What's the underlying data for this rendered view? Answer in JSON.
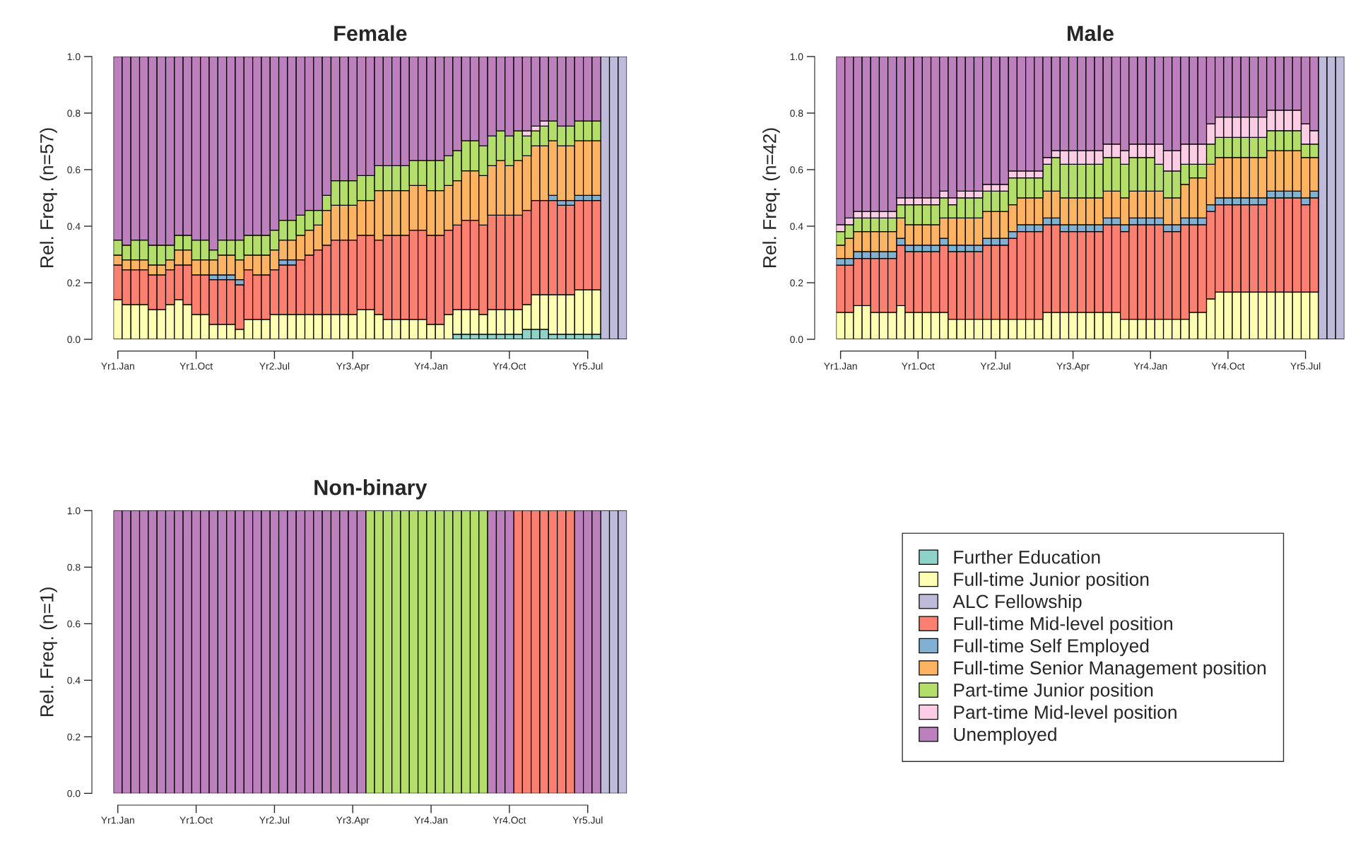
{
  "chart_data": [
    {
      "type": "bar",
      "stacked": true,
      "title": "Female",
      "ylabel": "Rel. Freq. (n=57)",
      "categories": [
        "Yr1.Jan",
        null,
        null,
        null,
        null,
        null,
        null,
        null,
        null,
        "Yr1.Oct",
        null,
        null,
        null,
        null,
        null,
        null,
        null,
        null,
        "Yr2.Jul",
        null,
        null,
        null,
        null,
        null,
        null,
        null,
        null,
        "Yr3.Apr",
        null,
        null,
        null,
        null,
        null,
        null,
        null,
        null,
        "Yr4.Jan",
        null,
        null,
        null,
        null,
        null,
        null,
        null,
        null,
        "Yr4.Oct",
        null,
        null,
        null,
        null,
        null,
        null,
        null,
        null,
        "Yr5.Jul",
        null,
        null,
        null,
        null
      ],
      "ylim": [
        0,
        1
      ],
      "yticks": [
        {
          "value": 0,
          "label": "0.0"
        },
        {
          "value": 0.2,
          "label": "0.2"
        },
        {
          "value": 0.4,
          "label": "0.4"
        },
        {
          "value": 0.6,
          "label": "0.6"
        },
        {
          "value": 0.8,
          "label": "0.8"
        },
        {
          "value": 1,
          "label": "1.0"
        }
      ],
      "series": [
        {
          "color": "#8dd3c7",
          "values": [
            0,
            0,
            0,
            0,
            0,
            0,
            0,
            0,
            0,
            0,
            0,
            0,
            0,
            0,
            0,
            0,
            0,
            0,
            0,
            0,
            0,
            0,
            0,
            0,
            0,
            0,
            0,
            0,
            0,
            0,
            0,
            0,
            0,
            0,
            0,
            0,
            0,
            0,
            0,
            0.018,
            0.018,
            0.018,
            0.018,
            0.018,
            0.018,
            0.018,
            0.018,
            0.035,
            0.035,
            0.035,
            0.018,
            0.018,
            0.018,
            0.018,
            0.018,
            0.018,
            0,
            0,
            0
          ]
        },
        {
          "color": "#ffffb3",
          "values": [
            0.14,
            0.123,
            0.123,
            0.123,
            0.105,
            0.105,
            0.123,
            0.14,
            0.123,
            0.088,
            0.088,
            0.053,
            0.053,
            0.053,
            0.035,
            0.07,
            0.07,
            0.07,
            0.088,
            0.088,
            0.088,
            0.088,
            0.088,
            0.088,
            0.088,
            0.088,
            0.088,
            0.088,
            0.105,
            0.105,
            0.088,
            0.07,
            0.07,
            0.07,
            0.07,
            0.07,
            0.053,
            0.053,
            0.088,
            0.087,
            0.087,
            0.087,
            0.07,
            0.087,
            0.087,
            0.087,
            0.087,
            0.088,
            0.123,
            0.123,
            0.14,
            0.14,
            0.14,
            0.157,
            0.157,
            0.157,
            0,
            0,
            0
          ]
        },
        {
          "color": "#bebada",
          "values": [
            0,
            0,
            0,
            0,
            0,
            0,
            0,
            0,
            0,
            0,
            0,
            0,
            0,
            0,
            0,
            0,
            0,
            0,
            0,
            0,
            0,
            0,
            0,
            0,
            0,
            0,
            0,
            0,
            0,
            0,
            0,
            0,
            0,
            0,
            0,
            0,
            0,
            0,
            0,
            0,
            0,
            0,
            0,
            0,
            0,
            0,
            0,
            0,
            0,
            0,
            0,
            0,
            0,
            0,
            0,
            0,
            1,
            1,
            1
          ]
        },
        {
          "color": "#fb8072",
          "values": [
            0.123,
            0.123,
            0.123,
            0.123,
            0.123,
            0.123,
            0.123,
            0.123,
            0.14,
            0.14,
            0.14,
            0.158,
            0.158,
            0.158,
            0.158,
            0.176,
            0.158,
            0.158,
            0.158,
            0.175,
            0.175,
            0.193,
            0.21,
            0.228,
            0.245,
            0.263,
            0.263,
            0.263,
            0.263,
            0.263,
            0.263,
            0.298,
            0.298,
            0.298,
            0.316,
            0.316,
            0.315,
            0.315,
            0.298,
            0.299,
            0.316,
            0.316,
            0.316,
            0.334,
            0.334,
            0.334,
            0.334,
            0.333,
            0.333,
            0.333,
            0.333,
            0.316,
            0.316,
            0.316,
            0.316,
            0.316,
            0,
            0,
            0
          ]
        },
        {
          "color": "#80b1d3",
          "values": [
            0,
            0,
            0,
            0,
            0,
            0,
            0,
            0,
            0,
            0,
            0,
            0.017,
            0.017,
            0.017,
            0.018,
            0,
            0,
            0,
            0,
            0.018,
            0.018,
            0,
            0,
            0,
            0,
            0,
            0,
            0,
            0,
            0,
            0,
            0,
            0,
            0,
            0,
            0,
            0,
            0,
            0,
            0,
            0,
            0,
            0,
            0,
            0,
            0,
            0,
            0,
            0,
            0,
            0.018,
            0.017,
            0.017,
            0.018,
            0.018,
            0.018,
            0,
            0,
            0
          ]
        },
        {
          "color": "#fdb462",
          "values": [
            0.035,
            0.035,
            0.035,
            0.035,
            0.035,
            0.035,
            0.035,
            0.053,
            0.053,
            0.053,
            0.053,
            0.053,
            0.07,
            0.07,
            0.07,
            0.052,
            0.07,
            0.07,
            0.07,
            0.07,
            0.07,
            0.087,
            0.088,
            0.088,
            0.123,
            0.123,
            0.123,
            0.123,
            0.123,
            0.123,
            0.175,
            0.158,
            0.158,
            0.158,
            0.158,
            0.158,
            0.158,
            0.158,
            0.158,
            0.157,
            0.175,
            0.175,
            0.175,
            0.175,
            0.193,
            0.175,
            0.193,
            0.193,
            0.193,
            0.193,
            0.193,
            0.193,
            0.193,
            0.193,
            0.193,
            0.193,
            0,
            0,
            0
          ]
        },
        {
          "color": "#b3de69",
          "values": [
            0.053,
            0.052,
            0.07,
            0.07,
            0.07,
            0.07,
            0.052,
            0.052,
            0.052,
            0.07,
            0.07,
            0.035,
            0.053,
            0.053,
            0.07,
            0.07,
            0.07,
            0.07,
            0.07,
            0.07,
            0.07,
            0.071,
            0.07,
            0.052,
            0.053,
            0.087,
            0.087,
            0.087,
            0.088,
            0.088,
            0.088,
            0.088,
            0.088,
            0.088,
            0.088,
            0.088,
            0.106,
            0.106,
            0.105,
            0.106,
            0.106,
            0.106,
            0.105,
            0.105,
            0.105,
            0.105,
            0.105,
            0.07,
            0.053,
            0.07,
            0.07,
            0.07,
            0.07,
            0.07,
            0.07,
            0.07,
            0,
            0,
            0
          ]
        },
        {
          "color": "#fccde5",
          "values": [
            0,
            0,
            0,
            0,
            0,
            0,
            0,
            0,
            0,
            0,
            0,
            0,
            0,
            0,
            0,
            0,
            0,
            0,
            0,
            0,
            0,
            0,
            0,
            0,
            0,
            0,
            0,
            0,
            0,
            0,
            0,
            0,
            0,
            0,
            0,
            0,
            0,
            0,
            0,
            0,
            0,
            0,
            0,
            0,
            0,
            0,
            0,
            0.018,
            0.017,
            0.018,
            0,
            0,
            0,
            0,
            0,
            0,
            0,
            0,
            0
          ]
        },
        {
          "color": "#bc80bd",
          "values": [
            0.649,
            0.667,
            0.649,
            0.649,
            0.667,
            0.667,
            0.667,
            0.632,
            0.632,
            0.649,
            0.649,
            0.684,
            0.649,
            0.649,
            0.649,
            0.632,
            0.632,
            0.632,
            0.614,
            0.579,
            0.579,
            0.561,
            0.544,
            0.544,
            0.491,
            0.439,
            0.439,
            0.439,
            0.421,
            0.421,
            0.386,
            0.386,
            0.386,
            0.386,
            0.368,
            0.368,
            0.368,
            0.368,
            0.351,
            0.333,
            0.298,
            0.298,
            0.316,
            0.281,
            0.263,
            0.281,
            0.263,
            0.263,
            0.246,
            0.228,
            0.228,
            0.246,
            0.246,
            0.228,
            0.228,
            0.228,
            0,
            0,
            0
          ]
        }
      ]
    },
    {
      "type": "bar",
      "stacked": true,
      "title": "Male",
      "ylabel": "Rel. Freq. (n=42)",
      "categories": [
        "Yr1.Jan",
        null,
        null,
        null,
        null,
        null,
        null,
        null,
        null,
        "Yr1.Oct",
        null,
        null,
        null,
        null,
        null,
        null,
        null,
        null,
        "Yr2.Jul",
        null,
        null,
        null,
        null,
        null,
        null,
        null,
        null,
        "Yr3.Apr",
        null,
        null,
        null,
        null,
        null,
        null,
        null,
        null,
        "Yr4.Jan",
        null,
        null,
        null,
        null,
        null,
        null,
        null,
        null,
        "Yr4.Oct",
        null,
        null,
        null,
        null,
        null,
        null,
        null,
        null,
        "Yr5.Jul",
        null,
        null,
        null,
        null
      ],
      "ylim": [
        0,
        1
      ],
      "yticks": [
        {
          "value": 0,
          "label": "0.0"
        },
        {
          "value": 0.2,
          "label": "0.2"
        },
        {
          "value": 0.4,
          "label": "0.4"
        },
        {
          "value": 0.6,
          "label": "0.6"
        },
        {
          "value": 0.8,
          "label": "0.8"
        },
        {
          "value": 1,
          "label": "1.0"
        }
      ],
      "series": [
        {
          "color": "#8dd3c7",
          "values": [
            0,
            0,
            0,
            0,
            0,
            0,
            0,
            0,
            0,
            0,
            0,
            0,
            0,
            0,
            0,
            0,
            0,
            0,
            0,
            0,
            0,
            0,
            0,
            0,
            0,
            0,
            0,
            0,
            0,
            0,
            0,
            0,
            0,
            0,
            0,
            0,
            0,
            0,
            0,
            0,
            0,
            0,
            0,
            0,
            0,
            0,
            0,
            0,
            0,
            0,
            0,
            0,
            0,
            0,
            0,
            0,
            0,
            0,
            0
          ]
        },
        {
          "color": "#ffffb3",
          "values": [
            0.095,
            0.095,
            0.119,
            0.119,
            0.095,
            0.095,
            0.095,
            0.119,
            0.095,
            0.095,
            0.095,
            0.095,
            0.095,
            0.071,
            0.071,
            0.071,
            0.071,
            0.071,
            0.071,
            0.071,
            0.071,
            0.071,
            0.071,
            0.071,
            0.095,
            0.095,
            0.095,
            0.095,
            0.095,
            0.095,
            0.095,
            0.095,
            0.095,
            0.071,
            0.071,
            0.071,
            0.071,
            0.071,
            0.071,
            0.071,
            0.071,
            0.095,
            0.095,
            0.143,
            0.167,
            0.167,
            0.167,
            0.167,
            0.167,
            0.167,
            0.167,
            0.167,
            0.167,
            0.167,
            0.167,
            0.167,
            0,
            0,
            0
          ]
        },
        {
          "color": "#bebada",
          "values": [
            0,
            0,
            0,
            0,
            0,
            0,
            0,
            0,
            0,
            0,
            0,
            0,
            0,
            0,
            0,
            0,
            0,
            0,
            0,
            0,
            0,
            0,
            0,
            0,
            0,
            0,
            0,
            0,
            0,
            0,
            0,
            0,
            0,
            0,
            0,
            0,
            0,
            0,
            0,
            0,
            0,
            0,
            0,
            0,
            0,
            0,
            0,
            0,
            0,
            0,
            0,
            0,
            0,
            0,
            0,
            0,
            1,
            1,
            1
          ]
        },
        {
          "color": "#fb8072",
          "values": [
            0.167,
            0.167,
            0.167,
            0.167,
            0.191,
            0.191,
            0.191,
            0.214,
            0.215,
            0.215,
            0.215,
            0.215,
            0.238,
            0.239,
            0.239,
            0.239,
            0.239,
            0.262,
            0.262,
            0.262,
            0.286,
            0.31,
            0.31,
            0.31,
            0.31,
            0.31,
            0.286,
            0.286,
            0.286,
            0.286,
            0.286,
            0.31,
            0.31,
            0.31,
            0.334,
            0.334,
            0.334,
            0.334,
            0.31,
            0.31,
            0.334,
            0.31,
            0.31,
            0.309,
            0.309,
            0.309,
            0.309,
            0.309,
            0.309,
            0.309,
            0.333,
            0.333,
            0.333,
            0.333,
            0.309,
            0.333,
            0,
            0,
            0
          ]
        },
        {
          "color": "#80b1d3",
          "values": [
            0.024,
            0.024,
            0.024,
            0.024,
            0.024,
            0.024,
            0.024,
            0.024,
            0.023,
            0.023,
            0.023,
            0.023,
            0.024,
            0.023,
            0.023,
            0.023,
            0.023,
            0.024,
            0.024,
            0.024,
            0.024,
            0.024,
            0.024,
            0.024,
            0.024,
            0.024,
            0.024,
            0.024,
            0.024,
            0.024,
            0.024,
            0.024,
            0.024,
            0.024,
            0.024,
            0.024,
            0.024,
            0.024,
            0.024,
            0.024,
            0.024,
            0.024,
            0.024,
            0.024,
            0.024,
            0.024,
            0.024,
            0.024,
            0.024,
            0.024,
            0.024,
            0.024,
            0.024,
            0.024,
            0.024,
            0.024,
            0,
            0,
            0
          ]
        },
        {
          "color": "#fdb462",
          "values": [
            0.047,
            0.071,
            0.071,
            0.071,
            0.071,
            0.071,
            0.071,
            0.072,
            0.072,
            0.072,
            0.072,
            0.072,
            0.072,
            0.096,
            0.096,
            0.096,
            0.096,
            0.095,
            0.095,
            0.095,
            0.095,
            0.095,
            0.095,
            0.095,
            0.095,
            0.095,
            0.095,
            0.095,
            0.095,
            0.095,
            0.095,
            0.095,
            0.095,
            0.095,
            0.095,
            0.095,
            0.095,
            0.095,
            0.095,
            0.095,
            0.119,
            0.142,
            0.142,
            0.143,
            0.143,
            0.143,
            0.143,
            0.143,
            0.143,
            0.143,
            0.143,
            0.143,
            0.143,
            0.143,
            0.143,
            0.119,
            0,
            0,
            0
          ]
        },
        {
          "color": "#b3de69",
          "values": [
            0.048,
            0.048,
            0.048,
            0.048,
            0.048,
            0.048,
            0.048,
            0.047,
            0.071,
            0.071,
            0.071,
            0.071,
            0.071,
            0.047,
            0.071,
            0.071,
            0.071,
            0.072,
            0.072,
            0.072,
            0.095,
            0.071,
            0.071,
            0.071,
            0.095,
            0.119,
            0.119,
            0.119,
            0.119,
            0.119,
            0.119,
            0.119,
            0.119,
            0.119,
            0.119,
            0.119,
            0.119,
            0.095,
            0.095,
            0.095,
            0.071,
            0.048,
            0.048,
            0.071,
            0.071,
            0.071,
            0.071,
            0.071,
            0.071,
            0.071,
            0.071,
            0.071,
            0.071,
            0.071,
            0.047,
            0.047,
            0,
            0,
            0
          ]
        },
        {
          "color": "#fccde5",
          "values": [
            0.024,
            0.024,
            0.023,
            0.023,
            0.023,
            0.023,
            0.023,
            0.024,
            0.024,
            0.024,
            0.024,
            0.024,
            0.024,
            0.024,
            0.024,
            0.024,
            0.024,
            0.024,
            0.024,
            0.024,
            0.024,
            0.024,
            0.024,
            0.024,
            0.024,
            0.024,
            0.048,
            0.048,
            0.048,
            0.048,
            0.048,
            0.047,
            0.047,
            0.048,
            0.047,
            0.047,
            0.047,
            0.071,
            0.072,
            0.072,
            0.071,
            0.071,
            0.071,
            0.072,
            0.072,
            0.072,
            0.072,
            0.072,
            0.072,
            0.072,
            0.072,
            0.072,
            0.072,
            0.072,
            0.072,
            0.048,
            0,
            0,
            0
          ]
        },
        {
          "color": "#bc80bd",
          "values": [
            0.595,
            0.571,
            0.548,
            0.548,
            0.548,
            0.548,
            0.548,
            0.5,
            0.5,
            0.5,
            0.5,
            0.5,
            0.476,
            0.5,
            0.476,
            0.476,
            0.476,
            0.452,
            0.452,
            0.452,
            0.405,
            0.405,
            0.405,
            0.405,
            0.357,
            0.333,
            0.333,
            0.333,
            0.333,
            0.333,
            0.333,
            0.31,
            0.31,
            0.333,
            0.31,
            0.31,
            0.31,
            0.31,
            0.333,
            0.333,
            0.31,
            0.31,
            0.31,
            0.238,
            0.214,
            0.214,
            0.214,
            0.214,
            0.214,
            0.214,
            0.19,
            0.19,
            0.19,
            0.19,
            0.238,
            0.262,
            0,
            0,
            0
          ]
        }
      ]
    },
    {
      "type": "bar",
      "stacked": true,
      "title": "Non-binary",
      "ylabel": "Rel. Freq. (n=1)",
      "legend": "right",
      "categories": [
        "Yr1.Jan",
        null,
        null,
        null,
        null,
        null,
        null,
        null,
        null,
        "Yr1.Oct",
        null,
        null,
        null,
        null,
        null,
        null,
        null,
        null,
        "Yr2.Jul",
        null,
        null,
        null,
        null,
        null,
        null,
        null,
        null,
        "Yr3.Apr",
        null,
        null,
        null,
        null,
        null,
        null,
        null,
        null,
        "Yr4.Jan",
        null,
        null,
        null,
        null,
        null,
        null,
        null,
        null,
        "Yr4.Oct",
        null,
        null,
        null,
        null,
        null,
        null,
        null,
        null,
        "Yr5.Jul",
        null,
        null,
        null,
        null
      ],
      "ylim": [
        0,
        1
      ],
      "yticks": [
        {
          "value": 0,
          "label": "0.0"
        },
        {
          "value": 0.2,
          "label": "0.2"
        },
        {
          "value": 0.4,
          "label": "0.4"
        },
        {
          "value": 0.6,
          "label": "0.6"
        },
        {
          "value": 0.8,
          "label": "0.8"
        },
        {
          "value": 1,
          "label": "1.0"
        }
      ],
      "series": [
        {
          "name": "Further Education",
          "color": "#8dd3c7",
          "values": [
            0,
            0,
            0,
            0,
            0,
            0,
            0,
            0,
            0,
            0,
            0,
            0,
            0,
            0,
            0,
            0,
            0,
            0,
            0,
            0,
            0,
            0,
            0,
            0,
            0,
            0,
            0,
            0,
            0,
            0,
            0,
            0,
            0,
            0,
            0,
            0,
            0,
            0,
            0,
            0,
            0,
            0,
            0,
            0,
            0,
            0,
            0,
            0,
            0,
            0,
            0,
            0,
            0,
            0,
            0,
            0,
            0,
            0,
            0
          ]
        },
        {
          "name": "Full-time Junior position",
          "color": "#ffffb3",
          "values": [
            0,
            0,
            0,
            0,
            0,
            0,
            0,
            0,
            0,
            0,
            0,
            0,
            0,
            0,
            0,
            0,
            0,
            0,
            0,
            0,
            0,
            0,
            0,
            0,
            0,
            0,
            0,
            0,
            0,
            0,
            0,
            0,
            0,
            0,
            0,
            0,
            0,
            0,
            0,
            0,
            0,
            0,
            0,
            0,
            0,
            0,
            0,
            0,
            0,
            0,
            0,
            0,
            0,
            0,
            0,
            0,
            0,
            0,
            0
          ]
        },
        {
          "name": "ALC Fellowship",
          "color": "#bebada",
          "values": [
            0,
            0,
            0,
            0,
            0,
            0,
            0,
            0,
            0,
            0,
            0,
            0,
            0,
            0,
            0,
            0,
            0,
            0,
            0,
            0,
            0,
            0,
            0,
            0,
            0,
            0,
            0,
            0,
            0,
            0,
            0,
            0,
            0,
            0,
            0,
            0,
            0,
            0,
            0,
            0,
            0,
            0,
            0,
            0,
            0,
            0,
            0,
            0,
            0,
            0,
            0,
            0,
            0,
            0,
            0,
            0,
            1,
            1,
            1
          ]
        },
        {
          "name": "Full-time Mid-level position",
          "color": "#fb8072",
          "values": [
            0,
            0,
            0,
            0,
            0,
            0,
            0,
            0,
            0,
            0,
            0,
            0,
            0,
            0,
            0,
            0,
            0,
            0,
            0,
            0,
            0,
            0,
            0,
            0,
            0,
            0,
            0,
            0,
            0,
            0,
            0,
            0,
            0,
            0,
            0,
            0,
            0,
            0,
            0,
            0,
            0,
            0,
            0,
            0,
            0,
            0,
            1,
            1,
            1,
            1,
            1,
            1,
            1,
            0,
            0,
            0,
            0,
            0,
            0
          ]
        },
        {
          "name": "Full-time Self Employed",
          "color": "#80b1d3",
          "values": [
            0,
            0,
            0,
            0,
            0,
            0,
            0,
            0,
            0,
            0,
            0,
            0,
            0,
            0,
            0,
            0,
            0,
            0,
            0,
            0,
            0,
            0,
            0,
            0,
            0,
            0,
            0,
            0,
            0,
            0,
            0,
            0,
            0,
            0,
            0,
            0,
            0,
            0,
            0,
            0,
            0,
            0,
            0,
            0,
            0,
            0,
            0,
            0,
            0,
            0,
            0,
            0,
            0,
            0,
            0,
            0,
            0,
            0,
            0
          ]
        },
        {
          "name": "Full-time Senior Management position",
          "color": "#fdb462",
          "values": [
            0,
            0,
            0,
            0,
            0,
            0,
            0,
            0,
            0,
            0,
            0,
            0,
            0,
            0,
            0,
            0,
            0,
            0,
            0,
            0,
            0,
            0,
            0,
            0,
            0,
            0,
            0,
            0,
            0,
            0,
            0,
            0,
            0,
            0,
            0,
            0,
            0,
            0,
            0,
            0,
            0,
            0,
            0,
            0,
            0,
            0,
            0,
            0,
            0,
            0,
            0,
            0,
            0,
            0,
            0,
            0,
            0,
            0,
            0
          ]
        },
        {
          "name": "Part-time Junior position",
          "color": "#b3de69",
          "values": [
            0,
            0,
            0,
            0,
            0,
            0,
            0,
            0,
            0,
            0,
            0,
            0,
            0,
            0,
            0,
            0,
            0,
            0,
            0,
            0,
            0,
            0,
            0,
            0,
            0,
            0,
            0,
            0,
            0,
            1,
            1,
            1,
            1,
            1,
            1,
            1,
            1,
            1,
            1,
            1,
            1,
            1,
            1,
            0,
            0,
            0,
            0,
            0,
            0,
            0,
            0,
            0,
            0,
            0,
            0,
            0,
            0,
            0,
            0
          ]
        },
        {
          "name": "Part-time Mid-level position",
          "color": "#fccde5",
          "values": [
            0,
            0,
            0,
            0,
            0,
            0,
            0,
            0,
            0,
            0,
            0,
            0,
            0,
            0,
            0,
            0,
            0,
            0,
            0,
            0,
            0,
            0,
            0,
            0,
            0,
            0,
            0,
            0,
            0,
            0,
            0,
            0,
            0,
            0,
            0,
            0,
            0,
            0,
            0,
            0,
            0,
            0,
            0,
            0,
            0,
            0,
            0,
            0,
            0,
            0,
            0,
            0,
            0,
            0,
            0,
            0,
            0,
            0,
            0
          ]
        },
        {
          "name": "Unemployed",
          "color": "#bc80bd",
          "values": [
            1,
            1,
            1,
            1,
            1,
            1,
            1,
            1,
            1,
            1,
            1,
            1,
            1,
            1,
            1,
            1,
            1,
            1,
            1,
            1,
            1,
            1,
            1,
            1,
            1,
            1,
            1,
            1,
            1,
            0,
            0,
            0,
            0,
            0,
            0,
            0,
            0,
            0,
            0,
            0,
            0,
            0,
            0,
            1,
            1,
            1,
            0,
            0,
            0,
            0,
            0,
            0,
            0,
            1,
            1,
            1,
            0,
            0,
            0
          ]
        }
      ]
    }
  ]
}
